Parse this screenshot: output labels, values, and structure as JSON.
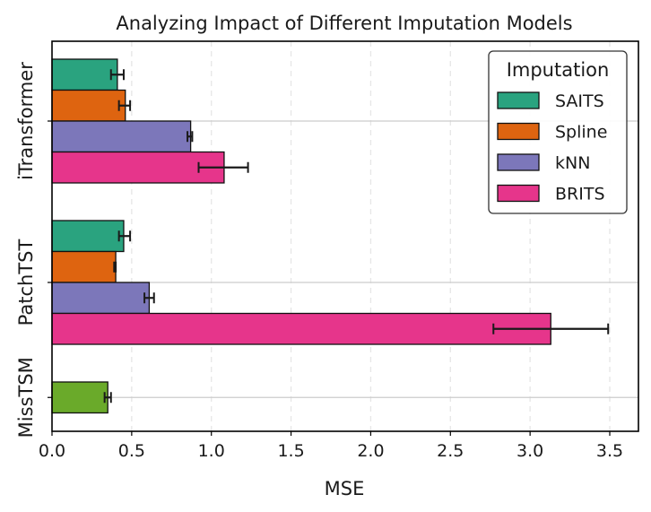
{
  "chart_data": {
    "type": "bar",
    "orientation": "horizontal",
    "title": "Analyzing Impact of Different Imputation Models",
    "xlabel": "MSE",
    "ylabel": "",
    "xlim": [
      0,
      3.68
    ],
    "xticks": [
      "0.0",
      "0.5",
      "1.0",
      "1.5",
      "2.0",
      "2.5",
      "3.0",
      "3.5"
    ],
    "grid": "vertical dashed",
    "legend": {
      "title": "Imputation",
      "position": "top-right",
      "entries": [
        {
          "label": "SAITS",
          "color": "#2aa37f"
        },
        {
          "label": "Spline",
          "color": "#de6410"
        },
        {
          "label": "kNN",
          "color": "#7c77ba"
        },
        {
          "label": "BRITS",
          "color": "#e6358b"
        }
      ]
    },
    "groups": [
      {
        "category": "iTransformer",
        "bars": [
          {
            "series": "SAITS",
            "value": 0.41,
            "err_low": 0.37,
            "err_high": 0.45,
            "color": "#2aa37f"
          },
          {
            "series": "Spline",
            "value": 0.46,
            "err_low": 0.42,
            "err_high": 0.49,
            "color": "#de6410"
          },
          {
            "series": "kNN",
            "value": 0.87,
            "err_low": 0.85,
            "err_high": 0.88,
            "color": "#7c77ba"
          },
          {
            "series": "BRITS",
            "value": 1.08,
            "err_low": 0.92,
            "err_high": 1.23,
            "color": "#e6358b"
          }
        ]
      },
      {
        "category": "PatchTST",
        "bars": [
          {
            "series": "SAITS",
            "value": 0.45,
            "err_low": 0.42,
            "err_high": 0.49,
            "color": "#2aa37f"
          },
          {
            "series": "Spline",
            "value": 0.4,
            "err_low": 0.39,
            "err_high": 0.4,
            "color": "#de6410"
          },
          {
            "series": "kNN",
            "value": 0.61,
            "err_low": 0.58,
            "err_high": 0.64,
            "color": "#7c77ba"
          },
          {
            "series": "BRITS",
            "value": 3.13,
            "err_low": 2.77,
            "err_high": 3.49,
            "color": "#e6358b"
          }
        ]
      },
      {
        "category": "MissTSM",
        "bars": [
          {
            "series": "MissTSM",
            "value": 0.35,
            "err_low": 0.33,
            "err_high": 0.37,
            "color": "#6aaa2a"
          }
        ]
      }
    ]
  }
}
